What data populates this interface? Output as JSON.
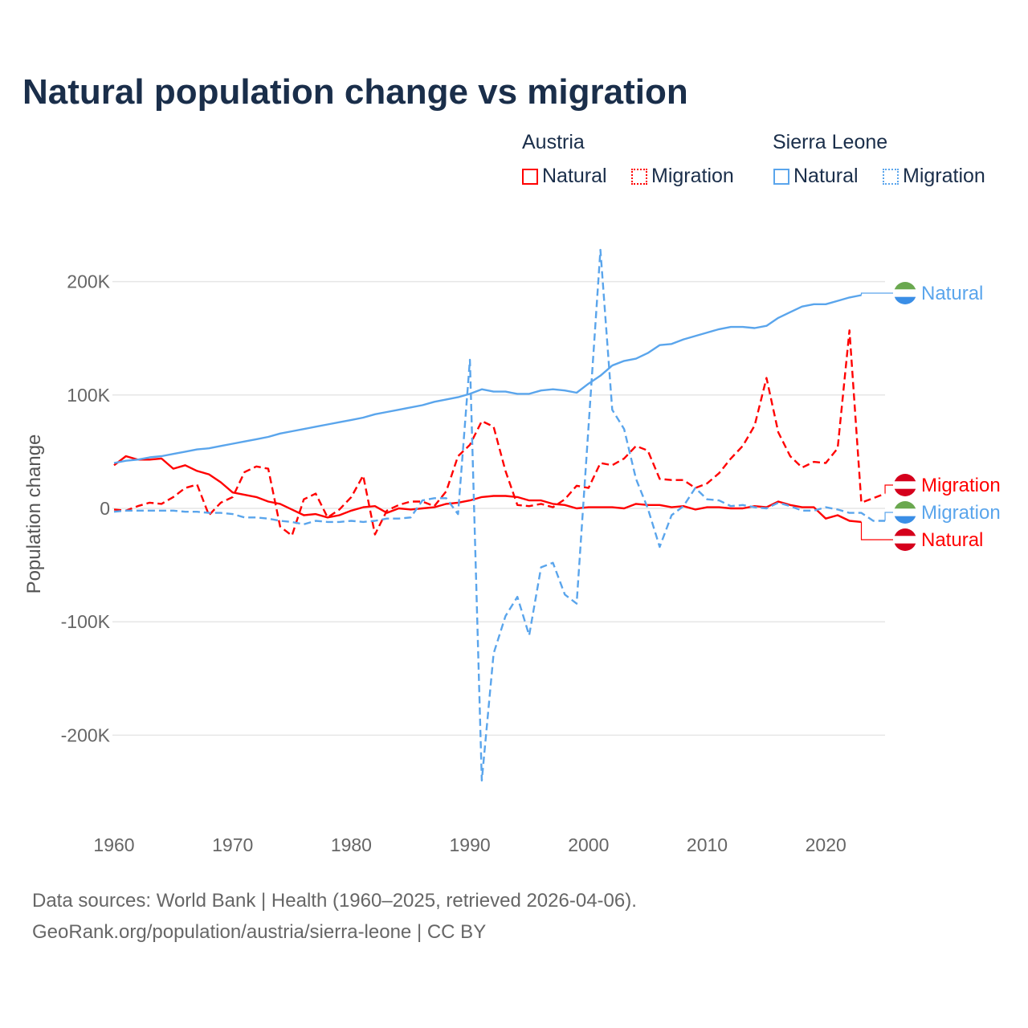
{
  "title": "Natural population change vs migration",
  "legend": {
    "groups": [
      {
        "name": "Austria",
        "items": [
          "Natural",
          "Migration"
        ]
      },
      {
        "name": "Sierra Leone",
        "items": [
          "Natural",
          "Migration"
        ]
      }
    ]
  },
  "colors": {
    "austria": "#ff0000",
    "sierra_leone": "#5aa5ec",
    "grid": "#e6e6e6",
    "text": "#1a2e4a"
  },
  "end_labels": [
    "Natural",
    "Migration",
    "Migration",
    "Natural"
  ],
  "source_lines": [
    "Data sources: World Bank | Health (1960–2025, retrieved 2026-04-06).",
    "GeoRank.org/population/austria/sierra-leone | CC BY"
  ],
  "chart_data": {
    "type": "line",
    "title": "Natural population change vs migration",
    "xlabel": "",
    "ylabel": "Population change",
    "xlim": [
      1960,
      2025
    ],
    "ylim": [
      -260000,
      240000
    ],
    "x_ticks": [
      1960,
      1970,
      1980,
      1990,
      2000,
      2010,
      2020
    ],
    "x_tick_labels": [
      "1960",
      "1970",
      "1980",
      "1990",
      "2000",
      "2010",
      "2020"
    ],
    "y_ticks": [
      200000,
      100000,
      0,
      -100000,
      -200000
    ],
    "y_tick_labels": [
      "200K",
      "100K",
      "0",
      "-100K",
      "-200K"
    ],
    "grid": true,
    "legend_position": "top-right",
    "series": [
      {
        "name": "Austria Natural",
        "country": "Austria",
        "kind": "Natural",
        "style": "solid",
        "start_year": 1960,
        "values_k": [
          38,
          46,
          43,
          43,
          44,
          35,
          38,
          33,
          30,
          23,
          14,
          12,
          10,
          6,
          4,
          -1,
          -6,
          -5,
          -8,
          -6,
          -2,
          1,
          2,
          -4,
          0,
          -1,
          0,
          1,
          4,
          5,
          7,
          10,
          11,
          11,
          10,
          7,
          7,
          4,
          3,
          0,
          1,
          1,
          1,
          0,
          4,
          3,
          3,
          1,
          2,
          -1,
          1,
          1,
          0,
          0,
          2,
          1,
          6,
          3,
          1,
          1,
          -9,
          -6,
          -11,
          -12
        ]
      },
      {
        "name": "Austria Migration",
        "country": "Austria",
        "kind": "Migration",
        "style": "dashed",
        "start_year": 1960,
        "values_k": [
          -1,
          -2,
          2,
          5,
          4,
          10,
          18,
          21,
          -6,
          5,
          10,
          32,
          37,
          35,
          -16,
          -24,
          8,
          13,
          -8,
          -1,
          10,
          29,
          -23,
          -2,
          3,
          6,
          6,
          2,
          15,
          46,
          56,
          77,
          72,
          33,
          3,
          2,
          4,
          1,
          8,
          20,
          18,
          40,
          38,
          44,
          55,
          51,
          26,
          25,
          25,
          18,
          22,
          31,
          44,
          55,
          73,
          115,
          67,
          46,
          36,
          41,
          40,
          53,
          157,
          5,
          9,
          13
        ]
      },
      {
        "name": "Sierra Leone Natural",
        "country": "Sierra Leone",
        "kind": "Natural",
        "style": "solid",
        "start_year": 1960,
        "values_k": [
          40,
          42,
          43,
          45,
          46,
          48,
          50,
          52,
          53,
          55,
          57,
          59,
          61,
          63,
          66,
          68,
          70,
          72,
          74,
          76,
          78,
          80,
          83,
          85,
          87,
          89,
          91,
          94,
          96,
          98,
          101,
          105,
          103,
          103,
          101,
          101,
          104,
          105,
          104,
          102,
          110,
          117,
          126,
          130,
          132,
          137,
          144,
          145,
          149,
          152,
          155,
          158,
          160,
          160,
          159,
          161,
          168,
          173,
          178,
          180,
          180,
          183,
          186,
          188
        ]
      },
      {
        "name": "Sierra Leone Migration",
        "country": "Sierra Leone",
        "kind": "Migration",
        "style": "dashed",
        "start_year": 1960,
        "values_k": [
          -3,
          -2,
          -2,
          -2,
          -2,
          -2,
          -3,
          -3,
          -4,
          -4,
          -5,
          -8,
          -8,
          -9,
          -11,
          -12,
          -14,
          -11,
          -12,
          -12,
          -11,
          -12,
          -11,
          -9,
          -9,
          -8,
          7,
          9,
          9,
          -5,
          131,
          -240,
          -128,
          -95,
          -78,
          -112,
          -52,
          -48,
          -76,
          -84,
          72,
          228,
          87,
          70,
          26,
          0,
          -34,
          -6,
          2,
          18,
          8,
          7,
          2,
          3,
          1,
          0,
          5,
          2,
          -2,
          -2,
          1,
          -1,
          -4,
          -4,
          -11,
          -11
        ]
      }
    ]
  }
}
